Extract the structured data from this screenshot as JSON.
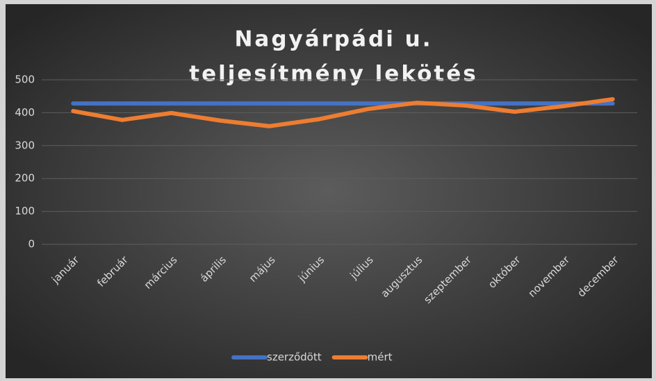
{
  "chart_data": {
    "type": "line",
    "title": [
      "Nagyárpádi u.",
      "teljesítmény lekötés"
    ],
    "categories": [
      "január",
      "február",
      "március",
      "április",
      "május",
      "június",
      "július",
      "augusztus",
      "szeptember",
      "október",
      "november",
      "december"
    ],
    "series": [
      {
        "name": "szerződött",
        "color": "#4472c4",
        "values": [
          428,
          428,
          428,
          428,
          428,
          428,
          428,
          428,
          428,
          428,
          428,
          428
        ]
      },
      {
        "name": "mért",
        "color": "#ed7d31",
        "values": [
          405,
          378,
          399,
          376,
          359,
          380,
          411,
          430,
          422,
          403,
          420,
          441
        ]
      }
    ],
    "ylim": [
      0,
      500
    ],
    "yticks": [
      0,
      100,
      200,
      300,
      400,
      500
    ],
    "grid": true,
    "legend": "bottom"
  }
}
